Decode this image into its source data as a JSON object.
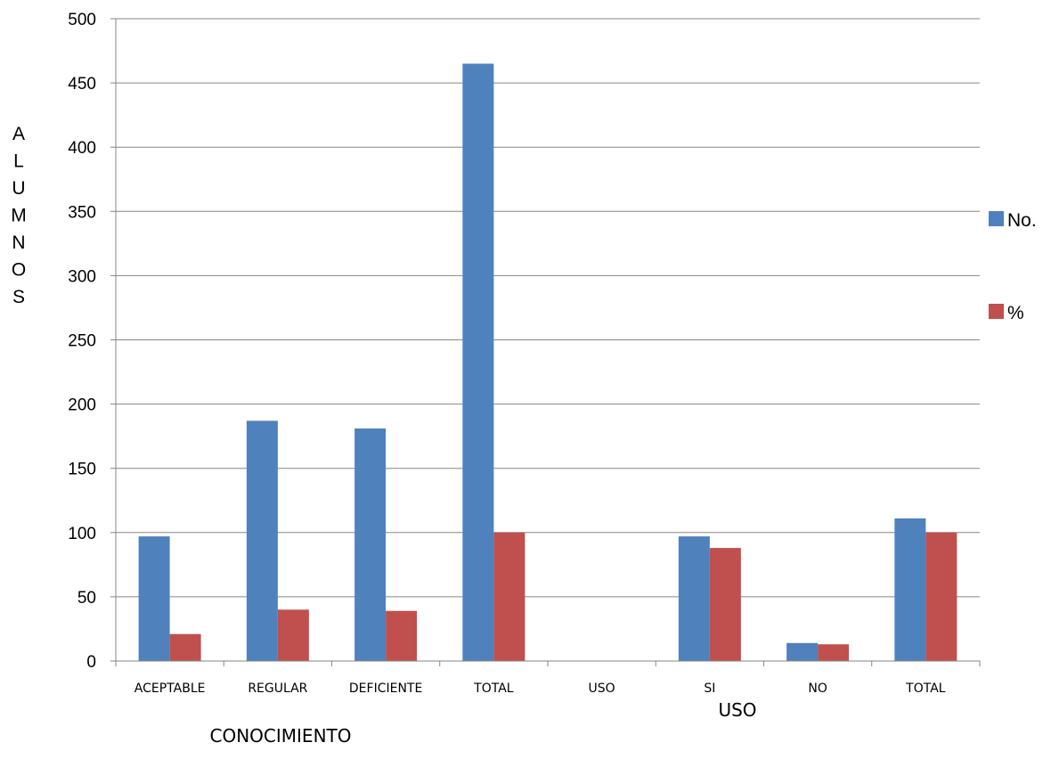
{
  "chart_data": {
    "type": "bar",
    "categories": [
      "ACEPTABLE",
      "REGULAR",
      "DEFICIENTE",
      "TOTAL",
      "USO",
      "SI",
      "NO",
      "TOTAL"
    ],
    "series": [
      {
        "name": "No.",
        "color": "#4F81BD",
        "values": [
          97,
          187,
          181,
          465,
          0,
          97,
          14,
          111
        ]
      },
      {
        "name": "%",
        "color": "#C0504D",
        "values": [
          21,
          40,
          39,
          100,
          0,
          88,
          13,
          100
        ]
      }
    ],
    "ylabel": "ALUMNOS",
    "ylim": [
      0,
      500
    ],
    "yticks": [
      "0",
      "50",
      "100",
      "150",
      "200",
      "250",
      "300",
      "350",
      "400",
      "450",
      "500"
    ],
    "grid": true,
    "legend_position": "right",
    "group_labels": [
      "CONOCIMIENTO",
      "USO"
    ]
  }
}
